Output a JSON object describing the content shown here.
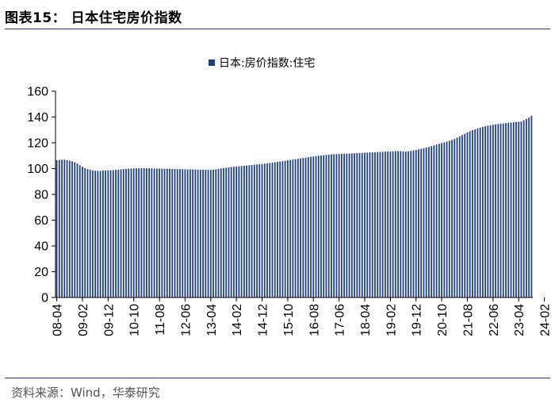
{
  "page": {
    "title": "图表15： 日本住宅房价指数",
    "source": "资料来源：Wind，华泰研究",
    "bar_color": "#1f3f82",
    "rule_color": "#1f3f6e"
  },
  "chart_data": {
    "type": "bar",
    "title": "",
    "xlabel": "",
    "ylabel": "",
    "legend": {
      "position": "top",
      "entries": [
        "日本:房价指数:住宅"
      ]
    },
    "grid": false,
    "ylim": [
      0,
      160
    ],
    "yticks": [
      0,
      20,
      40,
      60,
      80,
      100,
      120,
      140,
      160
    ],
    "xtick_labels": [
      "08-04",
      "09-02",
      "09-12",
      "10-10",
      "11-08",
      "12-06",
      "13-04",
      "14-02",
      "14-12",
      "15-10",
      "16-08",
      "17-06",
      "18-04",
      "19-02",
      "19-12",
      "20-10",
      "21-08",
      "22-06",
      "23-04",
      "24-02"
    ],
    "series": [
      {
        "name": "日本:房价指数:住宅",
        "start": "2008-04",
        "values": [
          106.5,
          106.8,
          106.9,
          106.9,
          106.5,
          106.1,
          105.6,
          104.9,
          103.9,
          102.6,
          101.4,
          100.3,
          99.6,
          99.1,
          98.6,
          98.3,
          98.2,
          98.3,
          98.4,
          98.5,
          98.6,
          98.7,
          98.8,
          99.0,
          99.2,
          99.4,
          99.6,
          99.7,
          99.9,
          100.0,
          100.1,
          100.2,
          100.2,
          100.3,
          100.3,
          100.2,
          100.2,
          100.1,
          100.1,
          100.0,
          100.0,
          99.9,
          99.9,
          99.8,
          99.8,
          99.7,
          99.7,
          99.6,
          99.6,
          99.5,
          99.5,
          99.4,
          99.4,
          99.3,
          99.3,
          99.2,
          99.2,
          99.1,
          99.1,
          99.0,
          99.0,
          99.2,
          99.5,
          99.8,
          100.1,
          100.4,
          100.7,
          101.0,
          101.2,
          101.4,
          101.6,
          101.8,
          102.0,
          102.2,
          102.4,
          102.6,
          102.8,
          103.0,
          103.2,
          103.4,
          103.6,
          103.8,
          104.0,
          104.3,
          104.6,
          104.9,
          105.2,
          105.5,
          105.8,
          106.1,
          106.4,
          106.7,
          107.0,
          107.3,
          107.6,
          107.9,
          108.2,
          108.5,
          108.8,
          109.1,
          109.4,
          109.7,
          110.0,
          110.2,
          110.4,
          110.6,
          110.8,
          111.0,
          111.1,
          111.2,
          111.3,
          111.4,
          111.5,
          111.6,
          111.7,
          111.8,
          111.9,
          112.0,
          112.1,
          112.2,
          112.3,
          112.4,
          112.5,
          112.6,
          112.7,
          112.8,
          112.9,
          113.0,
          113.1,
          113.2,
          113.3,
          113.4,
          113.5,
          113.6,
          113.5,
          113.3,
          113.2,
          113.4,
          113.7,
          114.1,
          114.5,
          114.9,
          115.3,
          115.8,
          116.3,
          116.8,
          117.4,
          118.0,
          118.6,
          119.2,
          119.8,
          120.4,
          121.0,
          121.6,
          122.2,
          123.0,
          124.0,
          125.0,
          126.0,
          127.0,
          128.0,
          129.0,
          129.8,
          130.5,
          131.2,
          131.8,
          132.3,
          132.8,
          133.2,
          133.6,
          134.0,
          134.3,
          134.6,
          134.9,
          135.1,
          135.3,
          135.5,
          135.7,
          135.9,
          136.1,
          136.3,
          136.5,
          137.5,
          138.5,
          139.5,
          141.0
        ]
      }
    ]
  }
}
